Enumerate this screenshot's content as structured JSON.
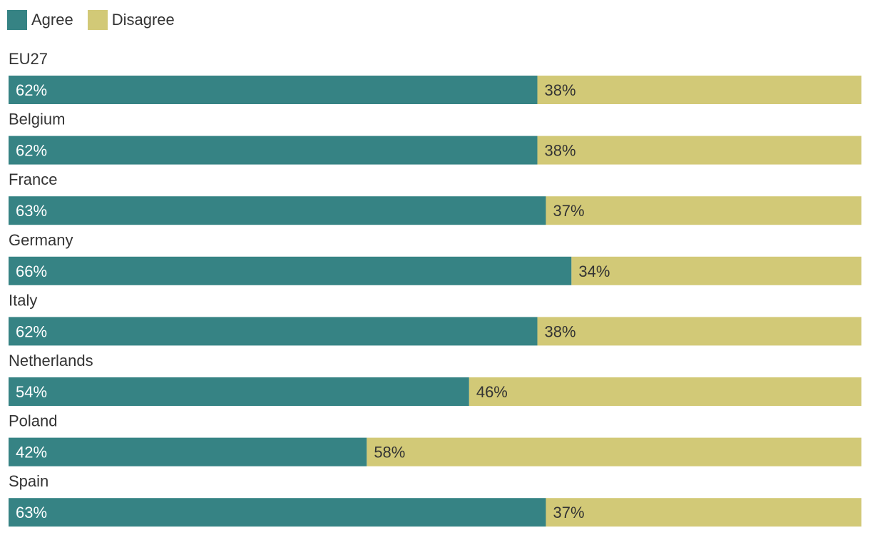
{
  "chart_data": {
    "type": "bar",
    "orientation": "horizontal",
    "stacked": true,
    "normalized": true,
    "legend_position": "top-left",
    "categories": [
      "EU27",
      "Belgium",
      "France",
      "Germany",
      "Italy",
      "Netherlands",
      "Poland",
      "Spain"
    ],
    "series": [
      {
        "name": "Agree",
        "color": "#368384",
        "label_color": "#ffffff",
        "values": [
          62,
          62,
          63,
          66,
          62,
          54,
          42,
          63
        ],
        "labels": [
          "62%",
          "62%",
          "63%",
          "66%",
          "62%",
          "54%",
          "42%",
          "63%"
        ]
      },
      {
        "name": "Disagree",
        "color": "#d2c977",
        "label_color": "#333333",
        "values": [
          38,
          38,
          37,
          34,
          38,
          46,
          58,
          37
        ],
        "labels": [
          "38%",
          "38%",
          "37%",
          "34%",
          "38%",
          "46%",
          "58%",
          "37%"
        ]
      }
    ],
    "xlim": [
      0,
      100
    ],
    "grid": false
  }
}
